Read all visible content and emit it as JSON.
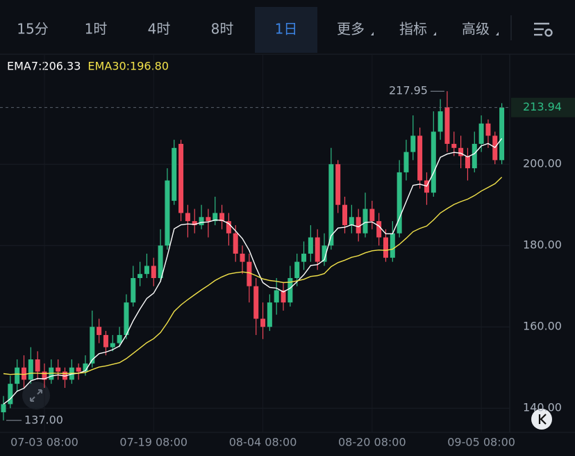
{
  "tabs": [
    "15分",
    "1时",
    "4时",
    "8时",
    "1日",
    "更多",
    "指标",
    "高级"
  ],
  "active_tab": "1日",
  "chart_data": {
    "type": "candlestick",
    "legend_labels": [
      "EMA7:206.33",
      "EMA30:196.80"
    ],
    "categories": [
      null,
      null,
      null,
      null,
      null,
      null,
      "07-03 08:00",
      null,
      null,
      null,
      null,
      null,
      null,
      null,
      null,
      null,
      null,
      null,
      null,
      null,
      null,
      null,
      "07-19 08:00",
      null,
      null,
      null,
      null,
      null,
      null,
      null,
      null,
      null,
      null,
      null,
      null,
      null,
      null,
      null,
      "08-04 08:00",
      null,
      null,
      null,
      null,
      null,
      null,
      null,
      null,
      null,
      null,
      null,
      null,
      null,
      null,
      null,
      "08-20 08:00",
      null,
      null,
      null,
      null,
      null,
      null,
      null,
      null,
      null,
      null,
      null,
      null,
      null,
      null,
      null,
      "09-05 08:00",
      null,
      null,
      null
    ],
    "open": [
      139,
      141,
      146,
      150,
      147,
      152,
      149,
      147,
      150,
      149,
      147,
      150,
      149,
      151,
      160,
      158,
      155,
      156,
      158,
      166,
      172,
      173,
      175,
      172,
      180,
      191,
      205,
      188,
      186,
      185,
      187,
      186,
      188,
      186,
      183,
      178,
      176,
      170,
      162,
      160,
      166,
      169,
      166,
      172,
      176,
      178,
      182,
      176,
      180,
      200,
      190,
      185,
      187,
      183,
      189,
      186,
      182,
      177,
      183,
      198,
      203,
      207,
      196,
      193,
      208,
      214,
      205,
      204,
      202,
      199,
      205,
      210,
      207,
      201
    ],
    "high": [
      143,
      148,
      152,
      153,
      155,
      154,
      151,
      152,
      152,
      150,
      152,
      151,
      153,
      164,
      162,
      159,
      158,
      160,
      168,
      175,
      176,
      178,
      177,
      184,
      199,
      206,
      206,
      190,
      189,
      190,
      189,
      192,
      190,
      188,
      185,
      180,
      178,
      172,
      166,
      168,
      172,
      171,
      175,
      178,
      181,
      185,
      184,
      183,
      204,
      201,
      192,
      190,
      189,
      193,
      191,
      188,
      184,
      186,
      201,
      206,
      212,
      209,
      198,
      213,
      216,
      217.95,
      208,
      207,
      204,
      208,
      212,
      211,
      208,
      215
    ],
    "low": [
      137,
      140,
      144,
      145,
      146,
      147,
      145,
      146,
      147,
      145,
      146,
      147,
      148,
      150,
      156,
      153,
      154,
      155,
      157,
      165,
      170,
      172,
      170,
      171,
      179,
      190,
      186,
      182,
      183,
      184,
      182,
      185,
      184,
      180,
      176,
      173,
      166,
      158,
      157,
      159,
      163,
      164,
      165,
      170,
      174,
      176,
      174,
      175,
      179,
      188,
      183,
      183,
      181,
      182,
      184,
      180,
      176,
      176,
      182,
      196,
      201,
      194,
      190,
      192,
      206,
      203,
      202,
      199,
      196,
      198,
      203,
      204,
      200,
      200
    ],
    "close": [
      141,
      146,
      150,
      147,
      152,
      149,
      147,
      150,
      149,
      147,
      150,
      149,
      151,
      160,
      158,
      155,
      156,
      158,
      166,
      172,
      173,
      175,
      172,
      180,
      196,
      204,
      188,
      186,
      185,
      187,
      186,
      188,
      186,
      183,
      178,
      176,
      170,
      162,
      160,
      166,
      169,
      166,
      172,
      176,
      178,
      182,
      176,
      180,
      200,
      190,
      185,
      187,
      183,
      189,
      186,
      182,
      177,
      183,
      198,
      203,
      207,
      196,
      193,
      208,
      213,
      205,
      204,
      202,
      199,
      205,
      210,
      207,
      201,
      213.94
    ],
    "up_color": "#2ebd85",
    "down_color": "#f0475a",
    "series": [
      {
        "name": "EMA7",
        "color": "#ffffff",
        "values": [
          141,
          142.3,
          144.2,
          144.9,
          146.7,
          147.3,
          147.2,
          147.9,
          148.2,
          147.9,
          148.4,
          148.6,
          149.2,
          151.9,
          153.4,
          153.8,
          154.4,
          155.3,
          158,
          161.5,
          164.4,
          167,
          168.3,
          171.2,
          177.4,
          184.1,
          185.1,
          185.3,
          185.2,
          185.7,
          185.8,
          186.3,
          186.2,
          185.4,
          183.6,
          181.7,
          178.8,
          174.6,
          170.9,
          169.7,
          169.5,
          168.6,
          169.5,
          171.1,
          172.8,
          175.1,
          175.3,
          176.5,
          182.4,
          184.3,
          184.5,
          185.1,
          184.6,
          185.7,
          185.8,
          184.8,
          182.9,
          182.9,
          186.7,
          190.8,
          194.8,
          195.1,
          194.6,
          197.9,
          201.7,
          202.5,
          202.9,
          202.7,
          201.8,
          202.6,
          204.5,
          205.1,
          204.1,
          206.33
        ]
      },
      {
        "name": "EMA30",
        "color": "#f2e24a",
        "values": [
          148.5,
          148.3,
          148.4,
          148.3,
          148.6,
          148.6,
          148.5,
          148.6,
          148.6,
          148.5,
          148.6,
          148.6,
          148.8,
          149.5,
          150.1,
          150.4,
          150.8,
          151.2,
          152.2,
          153.5,
          154.8,
          156.1,
          157.1,
          158.6,
          161,
          163.8,
          165.4,
          166.7,
          167.9,
          169.1,
          170.2,
          171.4,
          172.3,
          173,
          173.3,
          173.5,
          173.3,
          172.6,
          171.8,
          171.4,
          171.2,
          170.9,
          171,
          171.3,
          171.7,
          172.4,
          172.6,
          173.1,
          174.8,
          175.8,
          176.4,
          177.1,
          177.5,
          178.2,
          178.7,
          178.9,
          178.8,
          179.1,
          180.3,
          181.8,
          183.4,
          184.2,
          184.8,
          186.3,
          188,
          189.1,
          190.1,
          190.8,
          191.4,
          192.3,
          193.4,
          194.3,
          195.2,
          196.8
        ]
      }
    ],
    "max_label": "217.95",
    "min_label": "137.00",
    "last_label": "213.94",
    "ylim": [
      134.4,
      226.7
    ],
    "yticks": [
      {
        "value": 140,
        "label": "140.00"
      },
      {
        "value": 160,
        "label": "160.00"
      },
      {
        "value": 180,
        "label": "180.00"
      },
      {
        "value": 200,
        "label": "200.00"
      }
    ],
    "grid": true
  }
}
